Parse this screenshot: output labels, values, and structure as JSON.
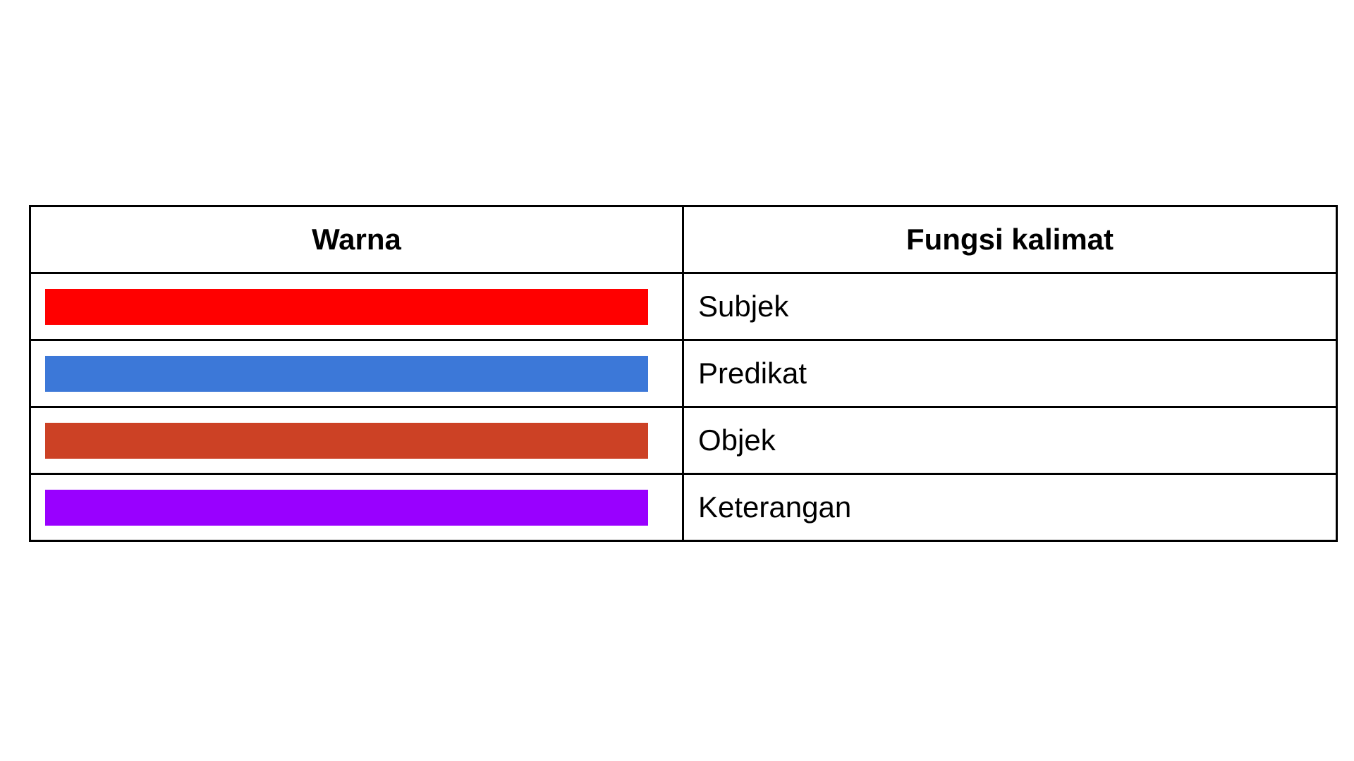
{
  "table": {
    "headers": {
      "color": "Warna",
      "function": "Fungsi kalimat"
    },
    "rows": [
      {
        "color": "#ff0000",
        "color_name": "red",
        "function": "Subjek"
      },
      {
        "color": "#3c78d8",
        "color_name": "blue",
        "function": "Predikat"
      },
      {
        "color": "#cc4125",
        "color_name": "red-orange",
        "function": "Objek"
      },
      {
        "color": "#9900ff",
        "color_name": "purple",
        "function": "Keterangan"
      }
    ]
  }
}
